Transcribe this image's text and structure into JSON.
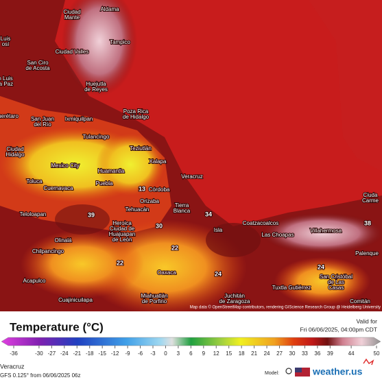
{
  "map": {
    "labels": [
      [
        "Ciudad",
        "Mante"
      ],
      [
        "Aldama"
      ],
      [
        "Tampico"
      ],
      [
        "Luis",
        "osí"
      ],
      [
        "Ciudad Valles"
      ],
      [
        "San Ciro",
        "de Acosta"
      ],
      [
        "n Luis",
        "la Paz"
      ],
      [
        "Huejutla",
        "de Reyes"
      ],
      [
        "Poza Rica",
        "de Hidalgo"
      ],
      [
        "uerétaro"
      ],
      [
        "San Juan",
        "del Río"
      ],
      [
        "Ixmiquilpan"
      ],
      [
        "Tulancingo"
      ],
      [
        "Teziutlán"
      ],
      [
        "Ciudad",
        "Hidalgo"
      ],
      [
        "Xalapa"
      ],
      [
        "Mexico City"
      ],
      [
        "Huamantla"
      ],
      [
        "Veracruz"
      ],
      [
        "Toluca"
      ],
      [
        "Cuernavaca"
      ],
      [
        "Puebla"
      ],
      [
        "Córdoba"
      ],
      [
        "Orizaba"
      ],
      [
        "Tehuacán"
      ],
      [
        "Tierra",
        "Blanca"
      ],
      [
        "Teloloapan"
      ],
      [
        "Coatzacoalcos"
      ],
      [
        "Villahermosa"
      ],
      [
        "Ciuda",
        "Carme"
      ],
      [
        "Isla"
      ],
      [
        "Las Choapas"
      ],
      [
        "Heroica",
        "Ciudad de",
        "Huajuapan",
        "de León"
      ],
      [
        "Olinalá"
      ],
      [
        "Chilpancingo"
      ],
      [
        "Palenque"
      ],
      [
        "Oaxaca"
      ],
      [
        "Acapulco"
      ],
      [
        "San Cristóbal",
        "de Las",
        "Casas"
      ],
      [
        "Tuxtla Gutiérrez"
      ],
      [
        "Miahuatlán",
        "de Porfirio"
      ],
      [
        "Juchitán",
        "de Zaragoza"
      ],
      [
        "Cuajinicuilapa"
      ],
      [
        "Comitán"
      ]
    ],
    "contour_labels": [
      39,
      34,
      22,
      22,
      24,
      24,
      38,
      30,
      13
    ],
    "attribution": "Map data © OpenStreetMap contributors, rendering GIScience Research Group @ Heidelberg University"
  },
  "legend": {
    "title": "Temperature (°C)",
    "valid_label": "Valid for",
    "valid_time": "Fri 06/06/2025, 04:00pm CDT",
    "ticks": [
      -36,
      -30,
      -27,
      -24,
      -21,
      -18,
      -15,
      -12,
      -9,
      -6,
      -3,
      0,
      3,
      6,
      9,
      12,
      15,
      18,
      21,
      24,
      27,
      30,
      33,
      36,
      39,
      44,
      50
    ]
  },
  "footer": {
    "region": "Veracruz",
    "model_run": "GFS 0.125° from 06/06/2025 06z",
    "model_label": "Model:",
    "brand": "weather.us"
  }
}
